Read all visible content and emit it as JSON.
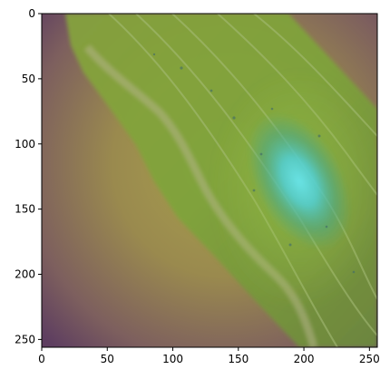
{
  "chart_data": {
    "type": "heatmap",
    "title": "",
    "xlabel": "",
    "ylabel": "",
    "x_ticks": [
      0,
      50,
      100,
      150,
      200,
      250
    ],
    "y_ticks": [
      0,
      50,
      100,
      150,
      200,
      250
    ],
    "xlim": [
      0,
      256
    ],
    "ylim": [
      256,
      0
    ],
    "grid": false,
    "legend": "none",
    "image_description_colors": {
      "leaf": "#7a9a3a",
      "overlay_purple": "#6a4a6a",
      "overlay_olive": "#a0904a",
      "hotspot_cyan": "#5ad8e0",
      "hotspot_teal": "#3aa8a0"
    }
  }
}
